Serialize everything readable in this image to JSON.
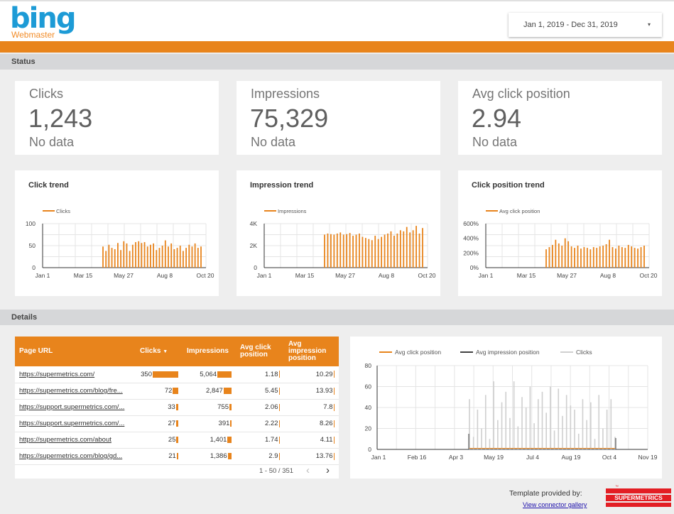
{
  "header": {
    "logo_main": "bing",
    "logo_sub": "Webmaster",
    "date_range": "Jan 1, 2019 - Dec 31, 2019",
    "caret_icon": "▾"
  },
  "sections": {
    "status": "Status",
    "details": "Details"
  },
  "scorecards": [
    {
      "label": "Clicks",
      "value": "1,243",
      "sub": "No data"
    },
    {
      "label": "Impressions",
      "value": "75,329",
      "sub": "No data"
    },
    {
      "label": "Avg click position",
      "value": "2.94",
      "sub": "No data"
    }
  ],
  "colors": {
    "accent": "#e8841c",
    "grid": "#e0e0e0",
    "dark": "#424242",
    "light": "#d0d0d0"
  },
  "chart_data": [
    {
      "type": "bar",
      "title": "Click trend",
      "legend": "Clicks",
      "y_ticks": [
        "100",
        "50",
        "0"
      ],
      "x_ticks": [
        "Jan 1",
        "Mar 15",
        "May 27",
        "Aug 8",
        "Oct 20"
      ],
      "ylim": [
        0,
        100
      ],
      "values": [
        48,
        38,
        52,
        45,
        42,
        56,
        40,
        60,
        55,
        38,
        52,
        58,
        60,
        56,
        58,
        48,
        52,
        55,
        40,
        45,
        50,
        62,
        48,
        55,
        42,
        45,
        50,
        38,
        45,
        52,
        48,
        55,
        45,
        48
      ]
    },
    {
      "type": "bar",
      "title": "Impression trend",
      "legend": "Impressions",
      "y_ticks": [
        "4K",
        "2K",
        "0"
      ],
      "x_ticks": [
        "Jan 1",
        "Mar 15",
        "May 27",
        "Aug 8",
        "Oct 20"
      ],
      "ylim": [
        0,
        4000
      ],
      "values": [
        3000,
        3100,
        3050,
        3000,
        3100,
        3200,
        3000,
        3050,
        3150,
        2900,
        3000,
        3100,
        2800,
        2700,
        2600,
        2500,
        2900,
        2600,
        2800,
        3000,
        3100,
        3300,
        2900,
        3100,
        3400,
        3300,
        3700,
        3200,
        3400,
        3800,
        3100,
        3600
      ]
    },
    {
      "type": "bar",
      "title": "Click position trend",
      "legend": "Avg click position",
      "y_ticks": [
        "600%",
        "400%",
        "200%",
        "0%"
      ],
      "x_ticks": [
        "Jan 1",
        "Mar 15",
        "May 27",
        "Aug 8",
        "Oct 20"
      ],
      "ylim": [
        0,
        600
      ],
      "values": [
        250,
        280,
        310,
        380,
        330,
        300,
        400,
        360,
        290,
        270,
        300,
        260,
        280,
        270,
        250,
        280,
        270,
        290,
        300,
        320,
        380,
        280,
        260,
        300,
        280,
        270,
        310,
        290,
        270,
        260,
        280,
        300
      ]
    },
    {
      "type": "bar",
      "title": "",
      "legend_items": [
        "Avg click position",
        "Avg impression position",
        "Clicks"
      ],
      "y_ticks": [
        "80",
        "60",
        "40",
        "20",
        "0"
      ],
      "x_ticks": [
        "Jan 1",
        "Feb 16",
        "Apr 3",
        "May 19",
        "Jul 4",
        "Aug 19",
        "Oct 4",
        "Nov 19"
      ],
      "ylim": [
        0,
        80
      ],
      "values": [
        48,
        12,
        38,
        20,
        52,
        10,
        65,
        28,
        45,
        55,
        30,
        65,
        22,
        50,
        40,
        60,
        25,
        48,
        55,
        35,
        60,
        18,
        58,
        32,
        52,
        42,
        38,
        15,
        48,
        28,
        45,
        10,
        52,
        20,
        38,
        48,
        12
      ]
    }
  ],
  "table": {
    "columns": [
      "Page URL",
      "Clicks",
      "Impressions",
      "Avg click position",
      "Avg impression position"
    ],
    "sort_icon": "▼",
    "rows": [
      {
        "url": "https://supermetrics.com/",
        "clicks": "350",
        "impressions": "5,064",
        "avg_click": "1.18",
        "avg_impr": "10.29",
        "clicks_frac": 1.0,
        "impr_frac": 1.0,
        "ac_frac": 0.22,
        "ai_frac": 0.74
      },
      {
        "url": "https://supermetrics.com/blog/fre...",
        "clicks": "72",
        "impressions": "2,847",
        "avg_click": "5.45",
        "avg_impr": "13.93",
        "clicks_frac": 0.21,
        "impr_frac": 0.56,
        "ac_frac": 1.0,
        "ai_frac": 1.0
      },
      {
        "url": "https://support.supermetrics.com/...",
        "clicks": "33",
        "impressions": "755",
        "avg_click": "2.06",
        "avg_impr": "7.8",
        "clicks_frac": 0.09,
        "impr_frac": 0.15,
        "ac_frac": 0.38,
        "ai_frac": 0.56
      },
      {
        "url": "https://support.supermetrics.com/...",
        "clicks": "27",
        "impressions": "391",
        "avg_click": "2.22",
        "avg_impr": "8.26",
        "clicks_frac": 0.08,
        "impr_frac": 0.08,
        "ac_frac": 0.41,
        "ai_frac": 0.59
      },
      {
        "url": "https://supermetrics.com/about",
        "clicks": "25",
        "impressions": "1,401",
        "avg_click": "1.74",
        "avg_impr": "4.11",
        "clicks_frac": 0.07,
        "impr_frac": 0.28,
        "ac_frac": 0.32,
        "ai_frac": 0.3
      },
      {
        "url": "https://supermetrics.com/blog/gd...",
        "clicks": "21",
        "impressions": "1,386",
        "avg_click": "2.9",
        "avg_impr": "13.76",
        "clicks_frac": 0.06,
        "impr_frac": 0.27,
        "ac_frac": 0.53,
        "ai_frac": 0.99
      }
    ],
    "pagination": "1 - 50 / 351",
    "prev_icon": "‹",
    "next_icon": "›"
  },
  "footer": {
    "provided_by": "Template provided by:",
    "link": "View connector gallery",
    "logo_text": "SUPERMETRICS",
    "tm": "™"
  }
}
